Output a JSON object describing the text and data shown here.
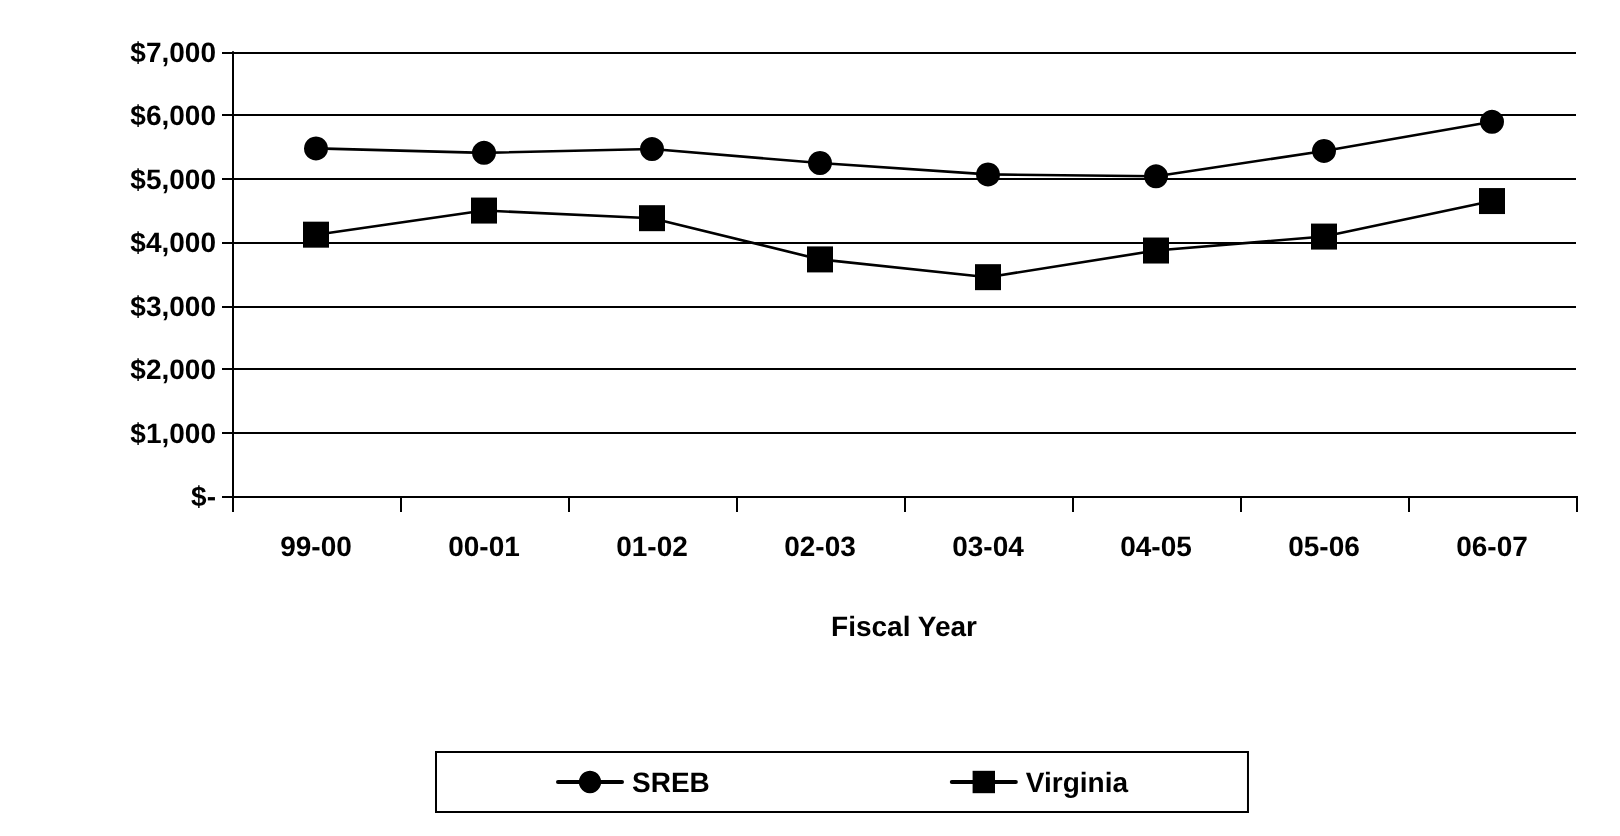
{
  "chart_data": {
    "type": "line",
    "xlabel": "Fiscal Year",
    "categories": [
      "99-00",
      "00-01",
      "01-02",
      "02-03",
      "03-04",
      "04-05",
      "05-06",
      "06-07"
    ],
    "series": [
      {
        "name": "SREB",
        "color": "#000000",
        "marker": "circle",
        "values": [
          5480,
          5410,
          5470,
          5250,
          5070,
          5040,
          5440,
          5900
        ]
      },
      {
        "name": "Virginia",
        "color": "#000000",
        "marker": "square",
        "values": [
          4120,
          4500,
          4380,
          3730,
          3450,
          3870,
          4090,
          4650
        ]
      }
    ],
    "ylim": [
      0,
      7000
    ],
    "yticks": [
      {
        "value": 0,
        "label": "$-"
      },
      {
        "value": 1000,
        "label": "$1,000"
      },
      {
        "value": 2000,
        "label": "$2,000"
      },
      {
        "value": 3000,
        "label": "$3,000"
      },
      {
        "value": 4000,
        "label": "$4,000"
      },
      {
        "value": 5000,
        "label": "$5,000"
      },
      {
        "value": 6000,
        "label": "$6,000"
      },
      {
        "value": 7000,
        "label": "$7,000"
      }
    ],
    "grid": "y",
    "legend": "bottom",
    "line_style": "solid"
  }
}
